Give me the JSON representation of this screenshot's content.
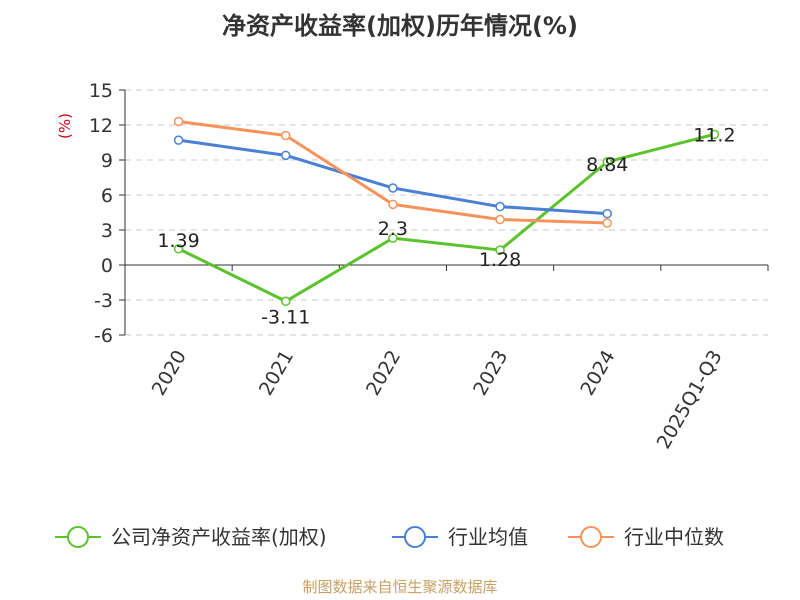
{
  "chart_data": {
    "type": "line",
    "title": "净资产收益率(加权)历年情况(%)",
    "ylabel": "(%)",
    "categories": [
      "2020",
      "2021",
      "2022",
      "2023",
      "2024",
      "2025Q1-Q3"
    ],
    "yticks": [
      15,
      12,
      9,
      6,
      3,
      0,
      -3,
      -6
    ],
    "ylim": [
      -6,
      15
    ],
    "grid": true,
    "legend_position": "bottom",
    "series": [
      {
        "name": "公司净资产收益率(加权)",
        "color": "#5ac22a",
        "values": [
          1.39,
          -3.11,
          2.3,
          1.28,
          8.84,
          11.2
        ],
        "labels": [
          "1.39",
          "-3.11",
          "2.3",
          "1.28",
          "8.84",
          "11.2"
        ]
      },
      {
        "name": "行业均值",
        "color": "#4a7fd6",
        "values": [
          10.7,
          9.4,
          6.6,
          5.0,
          4.4,
          null
        ]
      },
      {
        "name": "行业中位数",
        "color": "#f5935a",
        "values": [
          12.3,
          11.1,
          5.2,
          3.9,
          3.6,
          null
        ]
      }
    ],
    "source": "制图数据来自恒生聚源数据库"
  }
}
